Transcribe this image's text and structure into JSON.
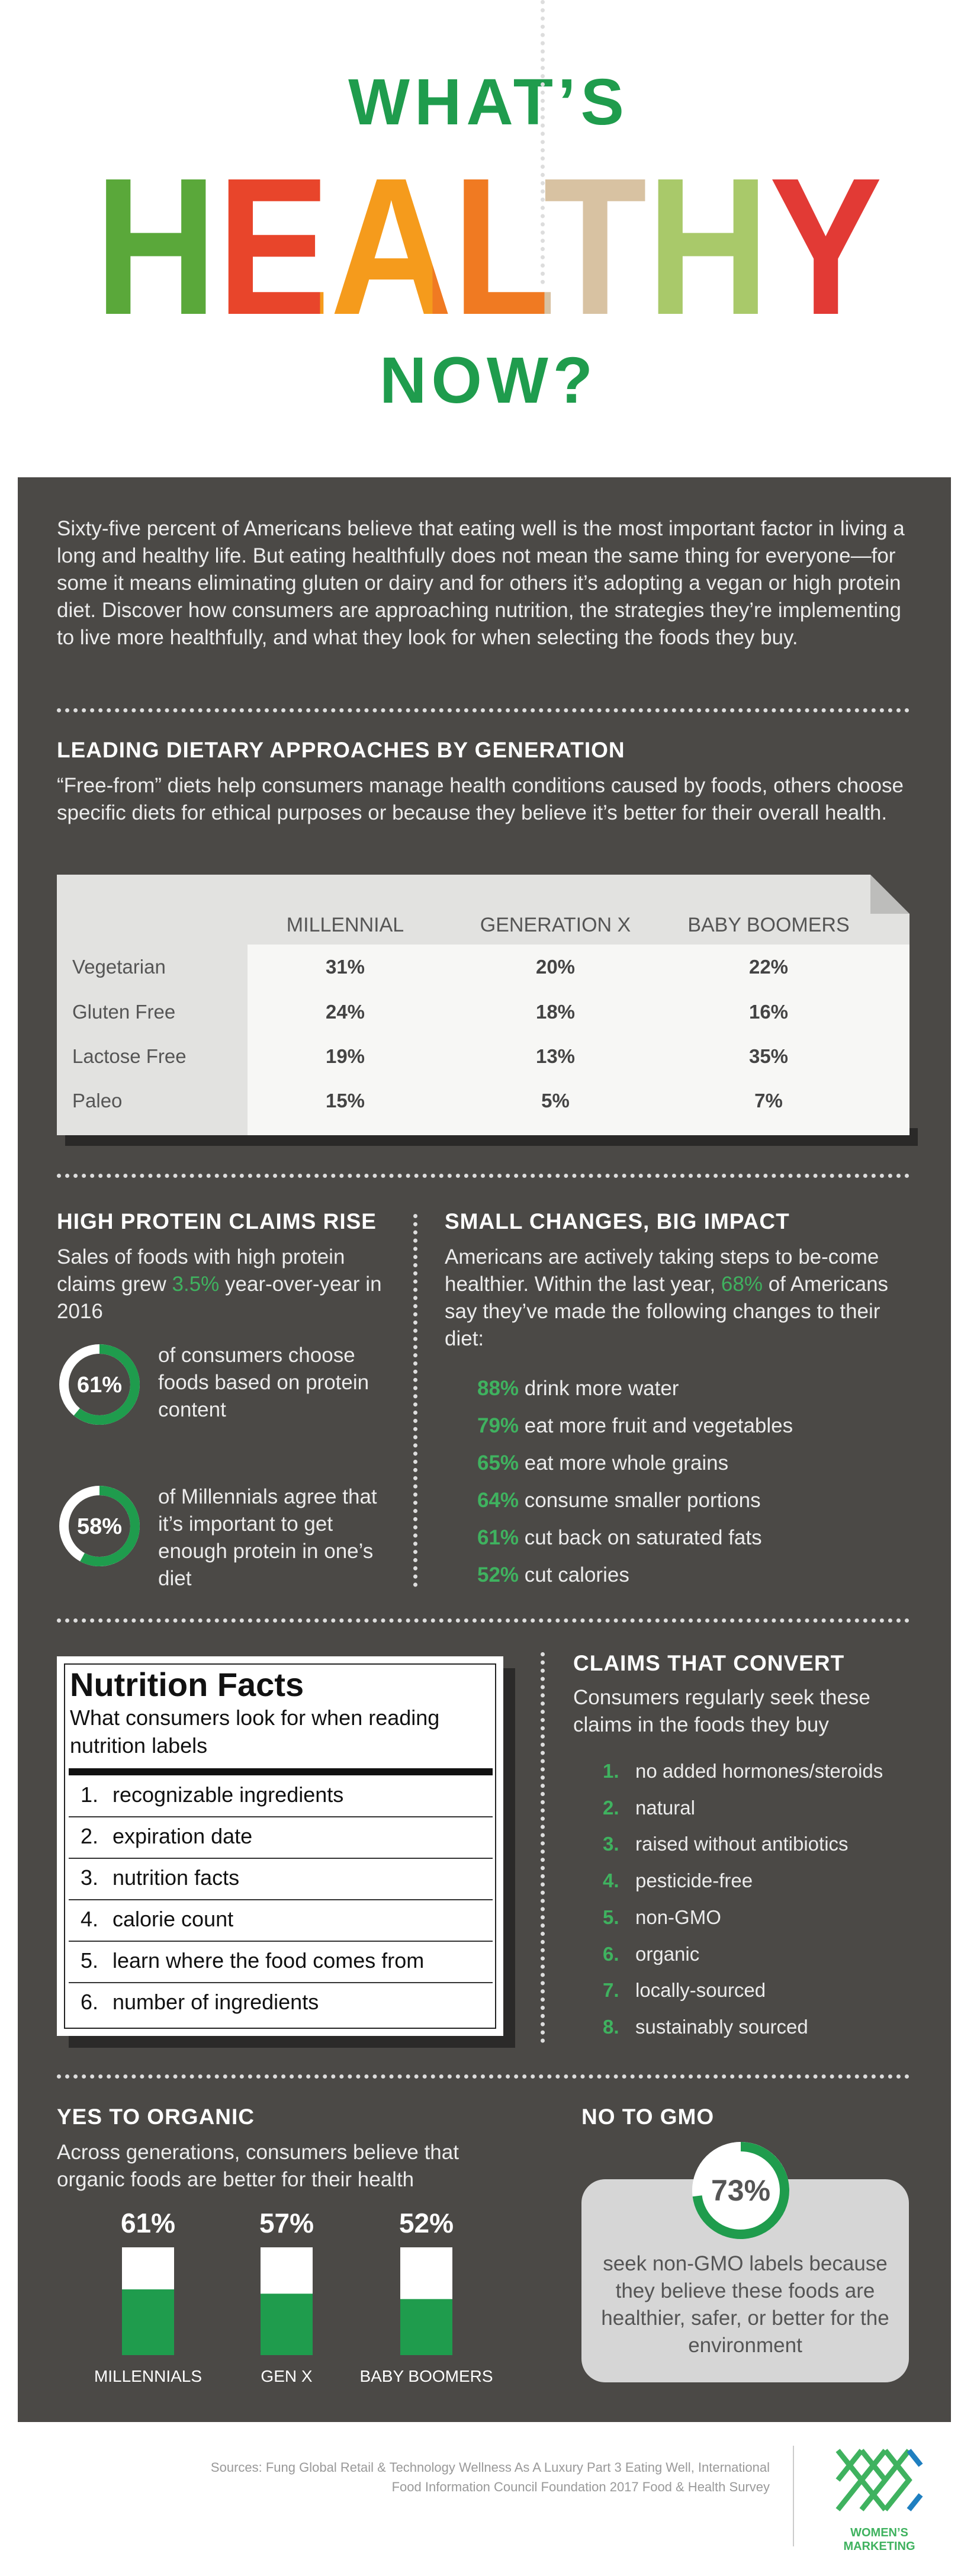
{
  "header": {
    "line1": "WHAT’S",
    "line2": "HEALTHY",
    "line3": "NOW?"
  },
  "intro": "Sixty-five percent of Americans believe that eating well is the most important factor in living a long and healthy life. But eating healthfully does not mean the same thing for everyone—for some it means eliminating gluten or dairy and for others it’s adopting a vegan or high protein diet. Discover how consumers are approaching nutrition, the strategies they’re implementing to live more healthfully, and what they look for when selecting the foods they buy.",
  "dietary": {
    "title": "LEADING DIETARY APPROACHES BY GENERATION",
    "description": "“Free-from” diets help consumers manage health conditions caused by foods, others choose specific diets for ethical purposes or because they believe it’s better for their overall health.",
    "columns": [
      "MILLENNIAL",
      "GENERATION X",
      "BABY BOOMERS"
    ],
    "rows": [
      {
        "label": "Vegetarian",
        "values": [
          "31%",
          "20%",
          "22%"
        ]
      },
      {
        "label": "Gluten Free",
        "values": [
          "24%",
          "18%",
          "16%"
        ]
      },
      {
        "label": "Lactose Free",
        "values": [
          "19%",
          "13%",
          "35%"
        ]
      },
      {
        "label": "Paleo",
        "values": [
          "15%",
          "5%",
          "7%"
        ]
      }
    ]
  },
  "protein": {
    "title": "HIGH PROTEIN CLAIMS RISE",
    "text_before": "Sales of foods with high protein claims grew",
    "highlight": "3.5%",
    "text_after": "year-over-year in 2016",
    "stats": [
      {
        "value": 61,
        "label": "61%",
        "text": "of consumers choose foods based on protein content"
      },
      {
        "value": 58,
        "label": "58%",
        "text": "of Millennials agree that it’s important to get enough protein in one’s diet"
      }
    ]
  },
  "changes": {
    "title": "SMALL CHANGES, BIG IMPACT",
    "text_before": "Americans are actively taking steps to be-come healthier. Within the last year,",
    "highlight": "68%",
    "text_after": "of Americans say they’ve made the following changes to their diet:",
    "items": [
      {
        "pct": "88%",
        "text": "drink more water"
      },
      {
        "pct": "79%",
        "text": "eat more fruit and vegetables"
      },
      {
        "pct": "65%",
        "text": "eat more whole grains"
      },
      {
        "pct": "64%",
        "text": "consume smaller portions"
      },
      {
        "pct": "61%",
        "text": "cut back on saturated fats"
      },
      {
        "pct": "52%",
        "text": "cut calories"
      }
    ]
  },
  "nutrition": {
    "title": "Nutrition Facts",
    "subtitle": "What consumers look for when reading nutrition labels",
    "items": [
      {
        "number": "1.",
        "text": "recognizable ingredients"
      },
      {
        "number": "2.",
        "text": "expiration date"
      },
      {
        "number": "3.",
        "text": "nutrition facts"
      },
      {
        "number": "4.",
        "text": "calorie count"
      },
      {
        "number": "5.",
        "text": "learn where the food comes from"
      },
      {
        "number": "6.",
        "text": "number of ingredients"
      }
    ]
  },
  "claims": {
    "title": "CLAIMS THAT CONVERT",
    "description": "Consumers regularly seek these claims in the foods they buy",
    "items": [
      {
        "number": "1.",
        "text": "no added hormones/steroids"
      },
      {
        "number": "2.",
        "text": "natural"
      },
      {
        "number": "3.",
        "text": "raised without antibiotics"
      },
      {
        "number": "4.",
        "text": "pesticide-free"
      },
      {
        "number": "5.",
        "text": "non-GMO"
      },
      {
        "number": "6.",
        "text": "organic"
      },
      {
        "number": "7.",
        "text": "locally-sourced"
      },
      {
        "number": "8.",
        "text": "sustainably sourced"
      }
    ]
  },
  "organic": {
    "title": "YES TO ORGANIC",
    "description": "Across generations, consumers believe that organic foods are better for their health",
    "bars": [
      {
        "value": 61,
        "label": "61%",
        "name": "MILLENNIALS"
      },
      {
        "value": 57,
        "label": "57%",
        "name": "GEN X"
      },
      {
        "value": 52,
        "label": "52%",
        "name": "BABY BOOMERS"
      }
    ]
  },
  "gmo": {
    "title": "NO TO GMO",
    "value": 73,
    "label": "73%",
    "text": "seek non-GMO labels because they believe these foods are healthier, safer, or better for the environment"
  },
  "footer": {
    "sources": "Sources: Fung Global Retail & Technology Wellness As A Luxury Part 3 Eating Well, International Food Information Council Foundation 2017 Food & Health Survey",
    "logo_text": "WOMEN’S MARKETING"
  }
}
